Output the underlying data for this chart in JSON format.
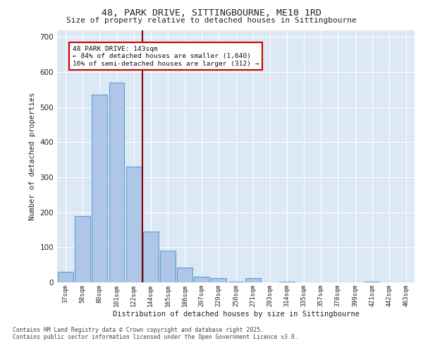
{
  "title_line1": "48, PARK DRIVE, SITTINGBOURNE, ME10 1RD",
  "title_line2": "Size of property relative to detached houses in Sittingbourne",
  "xlabel": "Distribution of detached houses by size in Sittingbourne",
  "ylabel": "Number of detached properties",
  "bar_labels": [
    "37sqm",
    "58sqm",
    "80sqm",
    "101sqm",
    "122sqm",
    "144sqm",
    "165sqm",
    "186sqm",
    "207sqm",
    "229sqm",
    "250sqm",
    "271sqm",
    "293sqm",
    "314sqm",
    "335sqm",
    "357sqm",
    "378sqm",
    "399sqm",
    "421sqm",
    "442sqm",
    "463sqm"
  ],
  "bar_values": [
    30,
    190,
    535,
    570,
    330,
    145,
    90,
    42,
    17,
    12,
    3,
    12,
    0,
    3,
    0,
    0,
    0,
    0,
    3,
    0,
    0
  ],
  "bar_color": "#aec6e8",
  "bar_edgecolor": "#5a9fd4",
  "bar_linewidth": 0.8,
  "ylim": [
    0,
    720
  ],
  "yticks": [
    0,
    100,
    200,
    300,
    400,
    500,
    600,
    700
  ],
  "property_line_xindex": 4.5,
  "property_line_color": "#8b0000",
  "annotation_text": "48 PARK DRIVE: 143sqm\n← 84% of detached houses are smaller (1,640)\n16% of semi-detached houses are larger (312) →",
  "plot_bg_color": "#dce9f5",
  "footer_line1": "Contains HM Land Registry data © Crown copyright and database right 2025.",
  "footer_line2": "Contains public sector information licensed under the Open Government Licence v3.0."
}
